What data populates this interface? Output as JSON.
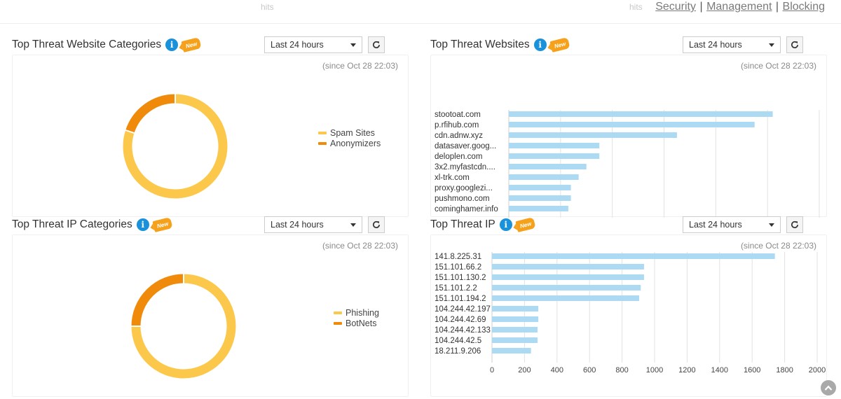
{
  "topbar": {
    "ghost_left": "hits",
    "ghost_right": "hits",
    "links": [
      "Security",
      "Management",
      "Blocking"
    ],
    "separator": "|"
  },
  "panels": [
    {
      "title": "Top Threat Website Categories",
      "badge": "New",
      "range": "Last 24 hours",
      "since": "(since Oct 28 22:03)",
      "icons": {
        "info": "info-icon",
        "refresh": "refresh-icon"
      }
    },
    {
      "title": "Top Threat Websites",
      "badge": "New",
      "range": "Last 24 hours",
      "since": "(since Oct 28 22:03)",
      "icons": {
        "info": "info-icon",
        "refresh": "refresh-icon"
      }
    },
    {
      "title": "Top Threat IP Categories",
      "badge": "New",
      "range": "Last 24 hours",
      "since": "(since Oct 28 22:03)",
      "icons": {
        "info": "info-icon",
        "refresh": "refresh-icon"
      }
    },
    {
      "title": "Top Threat IP",
      "badge": "New",
      "range": "Last 24 hours",
      "since": "(since Oct 28 22:03)",
      "icons": {
        "info": "info-icon",
        "refresh": "refresh-icon"
      }
    }
  ],
  "colors": {
    "major": "#fcc84b",
    "minor": "#ef8a0b",
    "bar": "#addaf3",
    "grid": "#e2e2e2",
    "info": "#1a92db",
    "badge": "#f5a11b"
  },
  "chart_data": [
    {
      "type": "pie",
      "variant": "donut",
      "labels": [
        "Spam Sites",
        "Anonymizers"
      ],
      "values": [
        80,
        20
      ],
      "legend": "right"
    },
    {
      "type": "bar",
      "orientation": "horizontal",
      "categories": [
        "stootoat.com",
        "p.rfihub.com",
        "cdn.adnw.xyz",
        "datasaver.goog...",
        "deloplen.com",
        "3x2.myfastcdn....",
        "xl-trk.com",
        "proxy.googlezi...",
        "pushmono.com",
        "cominghamer.info"
      ],
      "values": [
        102,
        95,
        65,
        35,
        35,
        30,
        27,
        24,
        24,
        23
      ],
      "xlim": [
        0,
        120
      ],
      "xticks": [
        0,
        20,
        40,
        60,
        80,
        100,
        120
      ],
      "grid": true
    },
    {
      "type": "pie",
      "variant": "donut",
      "labels": [
        "Phishing",
        "BotNets"
      ],
      "values": [
        75,
        25
      ],
      "legend": "right"
    },
    {
      "type": "bar",
      "orientation": "horizontal",
      "categories": [
        "141.8.225.31",
        "151.101.66.2",
        "151.101.130.2",
        "151.101.2.2",
        "151.101.194.2",
        "104.244.42.197",
        "104.244.42.69",
        "104.244.42.133",
        "104.244.42.5",
        "18.211.9.206"
      ],
      "values": [
        1740,
        935,
        935,
        915,
        905,
        285,
        285,
        280,
        280,
        240
      ],
      "xlim": [
        0,
        2000
      ],
      "xticks": [
        0,
        200,
        400,
        600,
        800,
        1000,
        1200,
        1400,
        1600,
        1800,
        2000
      ],
      "grid": true
    }
  ]
}
